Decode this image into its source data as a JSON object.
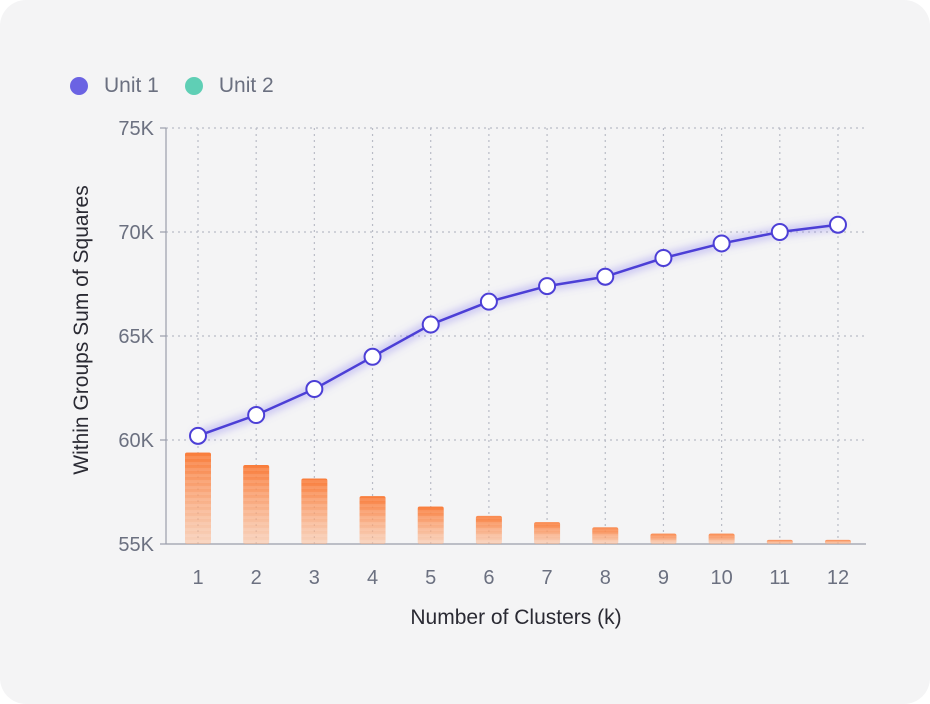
{
  "chart_data": {
    "type": "line",
    "title": "",
    "xlabel": "Number of Clusters (k)",
    "ylabel": "Within Groups Sum of Squares",
    "categories": [
      "1",
      "2",
      "3",
      "4",
      "5",
      "6",
      "7",
      "8",
      "9",
      "10",
      "11",
      "12"
    ],
    "ylim": [
      55000,
      75000
    ],
    "yticks": [
      55000,
      60000,
      65000,
      70000,
      75000
    ],
    "ytick_labels": [
      "55K",
      "60K",
      "65K",
      "70K",
      "75K"
    ],
    "grid": true,
    "legend_position": "top-left",
    "series": [
      {
        "name": "Unit 1",
        "kind": "line",
        "color": "#6b63e3",
        "line_color": "#4c3fd6",
        "values": [
          60200,
          61200,
          62450,
          64000,
          65550,
          66650,
          67400,
          67850,
          68750,
          69450,
          70000,
          70350
        ]
      },
      {
        "name": "Unit 2",
        "kind": "bar",
        "color": "#5fcfb5",
        "bar_color": "#f97c3a",
        "values": [
          59400,
          58800,
          58150,
          57300,
          56800,
          56350,
          56050,
          55800,
          55500,
          55500,
          55200,
          55200
        ]
      }
    ]
  }
}
